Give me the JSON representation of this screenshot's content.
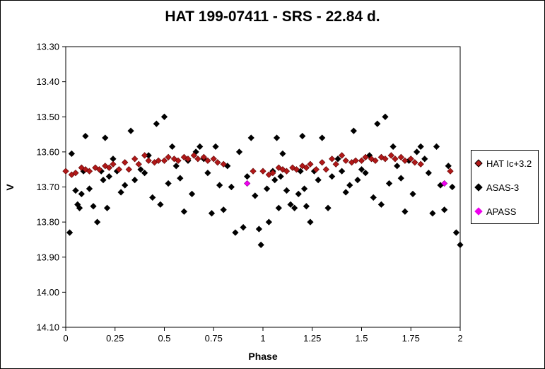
{
  "chart_data": {
    "type": "scatter",
    "title": "HAT 199-07411  - SRS - 22.84 d.",
    "xlabel": "Phase",
    "ylabel": "V",
    "xlim": [
      0,
      2
    ],
    "ylim": [
      13.3,
      14.1
    ],
    "y_reversed": true,
    "x_ticks": [
      "0",
      "0.25",
      "0.5",
      "0.75",
      "1",
      "1.25",
      "1.5",
      "1.75",
      "2"
    ],
    "y_ticks": [
      "13.30",
      "13.40",
      "13.50",
      "13.60",
      "13.70",
      "13.80",
      "13.90",
      "14.00",
      "14.10"
    ],
    "grid": false,
    "legend_position": "right",
    "series": [
      {
        "name": "HAT Ic+3.2",
        "color": "#b01818",
        "marker": "diamond",
        "x": [
          0.0,
          0.03,
          0.05,
          0.08,
          0.1,
          0.12,
          0.15,
          0.17,
          0.2,
          0.22,
          0.24,
          0.27,
          0.3,
          0.32,
          0.35,
          0.37,
          0.4,
          0.42,
          0.45,
          0.47,
          0.5,
          0.52,
          0.55,
          0.57,
          0.6,
          0.62,
          0.65,
          0.67,
          0.7,
          0.72,
          0.75,
          0.77,
          0.8,
          0.95,
          1.0,
          1.03,
          1.05,
          1.08,
          1.1,
          1.12,
          1.15,
          1.17,
          1.2,
          1.22,
          1.24,
          1.27,
          1.3,
          1.32,
          1.35,
          1.37,
          1.4,
          1.42,
          1.45,
          1.47,
          1.5,
          1.52,
          1.55,
          1.57,
          1.6,
          1.62,
          1.65,
          1.67,
          1.7,
          1.72,
          1.75,
          1.77,
          1.8,
          1.95
        ],
        "y": [
          13.655,
          13.665,
          13.66,
          13.645,
          13.65,
          13.655,
          13.645,
          13.65,
          13.64,
          13.645,
          13.635,
          13.65,
          13.63,
          13.65,
          13.62,
          13.635,
          13.61,
          13.625,
          13.63,
          13.625,
          13.625,
          13.615,
          13.62,
          13.625,
          13.615,
          13.62,
          13.61,
          13.62,
          13.615,
          13.625,
          13.62,
          13.63,
          13.635,
          13.655,
          13.655,
          13.665,
          13.66,
          13.645,
          13.65,
          13.655,
          13.645,
          13.65,
          13.64,
          13.645,
          13.635,
          13.65,
          13.63,
          13.65,
          13.62,
          13.635,
          13.61,
          13.625,
          13.63,
          13.625,
          13.625,
          13.615,
          13.62,
          13.625,
          13.615,
          13.62,
          13.61,
          13.62,
          13.615,
          13.625,
          13.62,
          13.63,
          13.635,
          13.655
        ]
      },
      {
        "name": "ASAS-3",
        "color": "#000000",
        "marker": "diamond",
        "x": [
          0.02,
          0.03,
          0.05,
          0.06,
          0.07,
          0.08,
          0.09,
          0.1,
          0.12,
          0.14,
          0.16,
          0.18,
          0.19,
          0.2,
          0.21,
          0.22,
          0.24,
          0.26,
          0.28,
          0.3,
          0.33,
          0.35,
          0.38,
          0.4,
          0.42,
          0.44,
          0.46,
          0.48,
          0.5,
          0.52,
          0.54,
          0.56,
          0.58,
          0.6,
          0.62,
          0.64,
          0.66,
          0.68,
          0.7,
          0.72,
          0.74,
          0.76,
          0.78,
          0.8,
          0.82,
          0.84,
          0.86,
          0.88,
          0.9,
          0.92,
          0.94,
          0.96,
          0.98,
          0.99,
          1.02,
          1.03,
          1.05,
          1.06,
          1.07,
          1.08,
          1.09,
          1.1,
          1.12,
          1.14,
          1.16,
          1.18,
          1.19,
          1.2,
          1.21,
          1.22,
          1.24,
          1.26,
          1.28,
          1.3,
          1.33,
          1.35,
          1.38,
          1.4,
          1.42,
          1.44,
          1.46,
          1.48,
          1.5,
          1.52,
          1.54,
          1.56,
          1.58,
          1.6,
          1.62,
          1.64,
          1.66,
          1.68,
          1.7,
          1.72,
          1.74,
          1.76,
          1.78,
          1.8,
          1.82,
          1.84,
          1.86,
          1.88,
          1.9,
          1.92,
          1.94,
          1.96,
          1.98,
          2.0
        ],
        "y": [
          13.83,
          13.605,
          13.71,
          13.75,
          13.76,
          13.72,
          13.655,
          13.555,
          13.705,
          13.755,
          13.8,
          13.655,
          13.68,
          13.56,
          13.76,
          13.67,
          13.62,
          13.655,
          13.715,
          13.695,
          13.54,
          13.68,
          13.65,
          13.66,
          13.61,
          13.73,
          13.52,
          13.75,
          13.5,
          13.69,
          13.585,
          13.64,
          13.675,
          13.77,
          13.625,
          13.72,
          13.6,
          13.585,
          13.62,
          13.66,
          13.775,
          13.585,
          13.695,
          13.765,
          13.64,
          13.7,
          13.83,
          13.6,
          13.815,
          13.67,
          13.56,
          13.725,
          13.82,
          13.865,
          13.705,
          13.8,
          13.655,
          13.68,
          13.56,
          13.76,
          13.67,
          13.605,
          13.71,
          13.75,
          13.76,
          13.72,
          13.655,
          13.555,
          13.705,
          13.755,
          13.8,
          13.655,
          13.68,
          13.56,
          13.76,
          13.67,
          13.62,
          13.655,
          13.715,
          13.695,
          13.54,
          13.68,
          13.65,
          13.66,
          13.61,
          13.73,
          13.52,
          13.75,
          13.5,
          13.69,
          13.585,
          13.64,
          13.675,
          13.77,
          13.625,
          13.72,
          13.6,
          13.585,
          13.62,
          13.66,
          13.775,
          13.585,
          13.695,
          13.765,
          13.64,
          13.7,
          13.83,
          13.865
        ]
      },
      {
        "name": "APASS",
        "color": "#ee00ee",
        "marker": "diamond",
        "x": [
          0.92,
          1.92
        ],
        "y": [
          13.69,
          13.69
        ]
      }
    ]
  }
}
